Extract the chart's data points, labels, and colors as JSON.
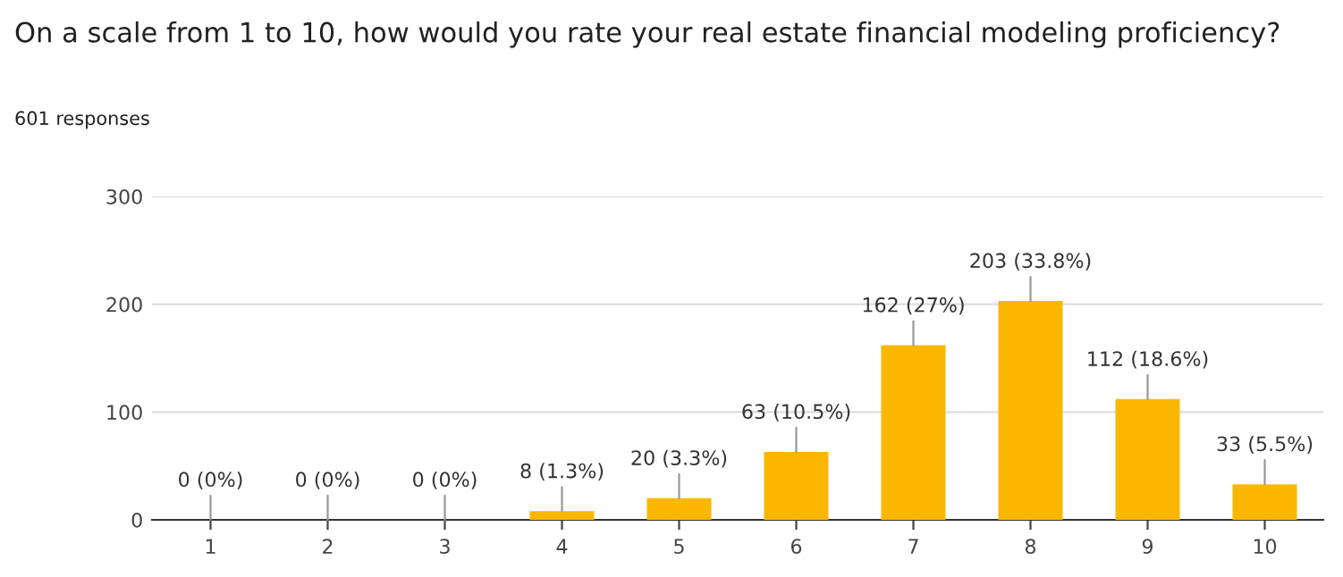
{
  "chart_data": {
    "type": "bar",
    "title": "On a scale from 1 to 10, how would you rate your real estate financial modeling proficiency?",
    "subtitle": "601 responses",
    "categories": [
      "1",
      "2",
      "3",
      "4",
      "5",
      "6",
      "7",
      "8",
      "9",
      "10"
    ],
    "values": [
      0,
      0,
      0,
      8,
      20,
      63,
      162,
      203,
      112,
      33
    ],
    "value_labels": [
      "0 (0%)",
      "0 (0%)",
      "0 (0%)",
      "8 (1.3%)",
      "20 (3.3%)",
      "63 (10.5%)",
      "162 (27%)",
      "203 (33.8%)",
      "112 (18.6%)",
      "33 (5.5%)"
    ],
    "color": "#fbb700",
    "ylim": [
      0,
      300
    ],
    "yticks": [
      0,
      100,
      200,
      300
    ],
    "grid": "y"
  }
}
